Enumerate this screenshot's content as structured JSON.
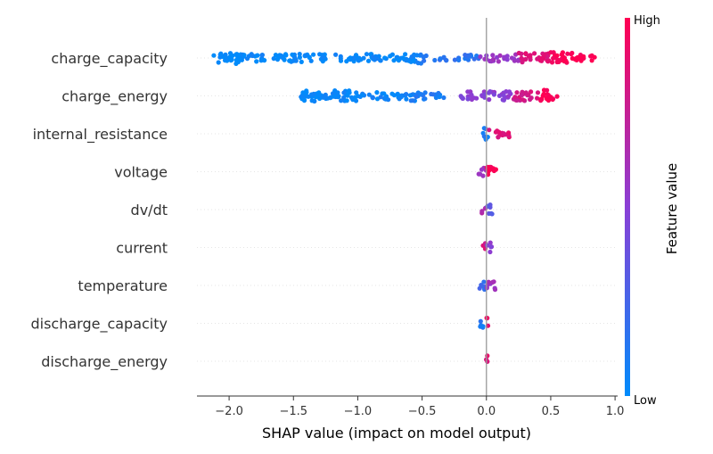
{
  "chart_data": {
    "type": "scatter",
    "title": "",
    "xlabel": "SHAP value (impact on model output)",
    "ylabel": "",
    "xlim": [
      -2.25,
      1.02
    ],
    "xticks": [
      -2.0,
      -1.5,
      -1.0,
      -0.5,
      0.0,
      0.5,
      1.0
    ],
    "xtick_labels": [
      "−2.0",
      "−1.5",
      "−1.0",
      "−0.5",
      "0.0",
      "0.5",
      "1.0"
    ],
    "zero_line": 0.0,
    "grid": false,
    "colorbar": {
      "title": "Feature value",
      "high_label": "High",
      "low_label": "Low",
      "low_color": "#008bfb",
      "high_color": "#ff0052",
      "placement": "right"
    },
    "features": [
      {
        "name": "charge_capacity",
        "segments": [
          {
            "x_from": -2.12,
            "x_to": -1.9,
            "feature_value": 0.0,
            "density": 1.0
          },
          {
            "x_from": -1.9,
            "x_to": -0.6,
            "feature_value": 0.02,
            "density": 0.6
          },
          {
            "x_from": -0.6,
            "x_to": -0.5,
            "feature_value": 0.05,
            "density": 1.0
          },
          {
            "x_from": -0.5,
            "x_to": -0.05,
            "feature_value": 0.15,
            "density": 0.4
          },
          {
            "x_from": -0.05,
            "x_to": 0.25,
            "feature_value": 0.55,
            "density": 0.5
          },
          {
            "x_from": 0.25,
            "x_to": 0.5,
            "feature_value": 0.85,
            "density": 0.8
          },
          {
            "x_from": 0.5,
            "x_to": 0.68,
            "feature_value": 1.0,
            "density": 1.0
          },
          {
            "x_from": 0.68,
            "x_to": 0.87,
            "feature_value": 1.0,
            "density": 0.5
          }
        ]
      },
      {
        "name": "charge_energy",
        "segments": [
          {
            "x_from": -1.45,
            "x_to": -1.0,
            "feature_value": 0.02,
            "density": 0.9
          },
          {
            "x_from": -1.0,
            "x_to": -0.6,
            "feature_value": 0.05,
            "density": 0.6
          },
          {
            "x_from": -0.6,
            "x_to": -0.55,
            "feature_value": 0.08,
            "density": 1.0
          },
          {
            "x_from": -0.55,
            "x_to": -0.32,
            "feature_value": 0.1,
            "density": 0.5
          },
          {
            "x_from": -0.2,
            "x_to": 0.2,
            "feature_value": 0.5,
            "density": 0.7
          },
          {
            "x_from": 0.2,
            "x_to": 0.4,
            "feature_value": 0.8,
            "density": 0.8
          },
          {
            "x_from": 0.4,
            "x_to": 0.5,
            "feature_value": 1.0,
            "density": 1.0
          },
          {
            "x_from": 0.5,
            "x_to": 0.55,
            "feature_value": 0.95,
            "density": 0.6
          }
        ]
      },
      {
        "name": "internal_resistance",
        "segments": [
          {
            "x_from": -0.03,
            "x_to": 0.02,
            "feature_value": 0.1,
            "density": 1.0
          },
          {
            "x_from": 0.02,
            "x_to": 0.21,
            "feature_value": 0.85,
            "density": 0.6
          }
        ]
      },
      {
        "name": "voltage",
        "segments": [
          {
            "x_from": -0.06,
            "x_to": 0.0,
            "feature_value": 0.6,
            "density": 0.7
          },
          {
            "x_from": 0.0,
            "x_to": 0.08,
            "feature_value": 1.0,
            "density": 1.0
          }
        ]
      },
      {
        "name": "dv/dt",
        "segments": [
          {
            "x_from": -0.04,
            "x_to": 0.0,
            "feature_value": 0.7,
            "density": 0.7
          },
          {
            "x_from": 0.0,
            "x_to": 0.05,
            "feature_value": 0.35,
            "density": 0.8
          }
        ]
      },
      {
        "name": "current",
        "segments": [
          {
            "x_from": -0.03,
            "x_to": 0.0,
            "feature_value": 0.8,
            "density": 0.7
          },
          {
            "x_from": 0.0,
            "x_to": 0.04,
            "feature_value": 0.5,
            "density": 0.8
          }
        ]
      },
      {
        "name": "temperature",
        "segments": [
          {
            "x_from": -0.06,
            "x_to": 0.0,
            "feature_value": 0.2,
            "density": 0.7
          },
          {
            "x_from": 0.0,
            "x_to": 0.07,
            "feature_value": 0.6,
            "density": 0.8
          }
        ]
      },
      {
        "name": "discharge_capacity",
        "segments": [
          {
            "x_from": -0.05,
            "x_to": 0.0,
            "feature_value": 0.1,
            "density": 0.7
          },
          {
            "x_from": 0.0,
            "x_to": 0.02,
            "feature_value": 0.9,
            "density": 0.9
          }
        ]
      },
      {
        "name": "discharge_energy",
        "segments": [
          {
            "x_from": -0.01,
            "x_to": 0.01,
            "feature_value": 0.9,
            "density": 1.0
          }
        ]
      }
    ]
  }
}
